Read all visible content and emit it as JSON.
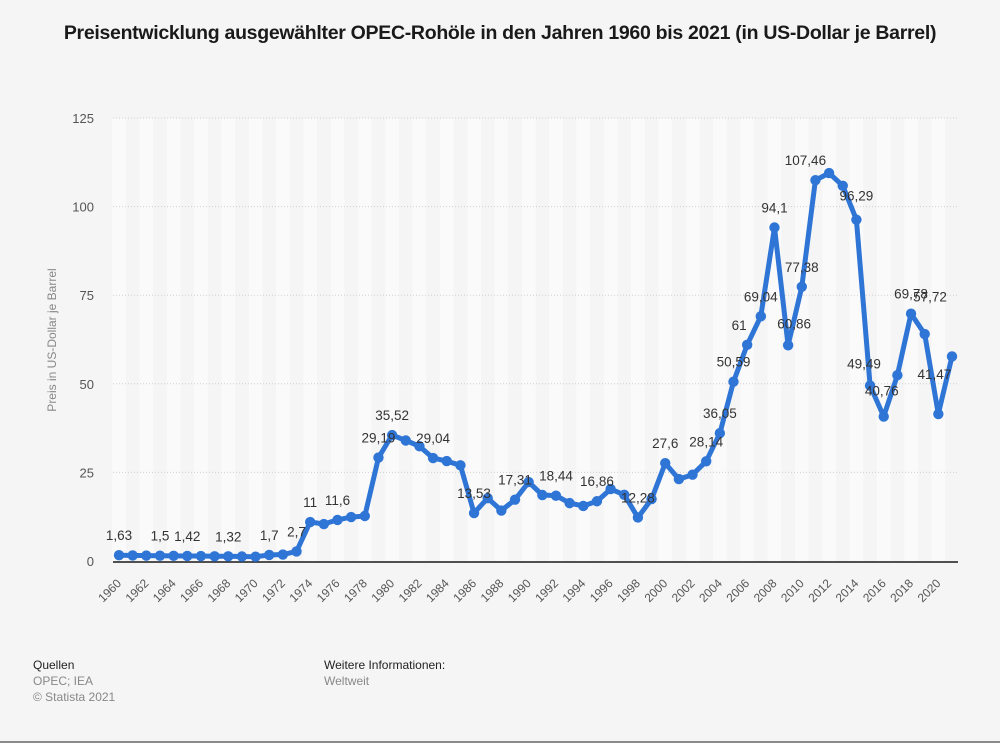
{
  "title": "Preisentwicklung ausgewählter OPEC-Rohöle in den Jahren 1960 bis 2021 (in US-Dollar je Barrel)",
  "footer": {
    "sources_heading": "Quellen",
    "sources": "OPEC; IEA",
    "copyright": "© Statista 2021",
    "more_info_heading": "Weitere Informationen:",
    "more_info": "Weltweit"
  },
  "colors": {
    "line": "#2f75d6",
    "background": "#f5f5f5",
    "grid": "#cfcfcf",
    "axis": "#1a1a1a"
  },
  "chart_data": {
    "type": "line",
    "title": "Preisentwicklung ausgewählter OPEC-Rohöle in den Jahren 1960 bis 2021 (in US-Dollar je Barrel)",
    "xlabel": "",
    "ylabel": "Preis in US-Dollar je Barrel",
    "ylim": [
      0,
      125
    ],
    "yticks": [
      0,
      25,
      50,
      75,
      100,
      125
    ],
    "grid": true,
    "legend": null,
    "x": [
      1960,
      1961,
      1962,
      1963,
      1964,
      1965,
      1966,
      1967,
      1968,
      1969,
      1970,
      1971,
      1972,
      1973,
      1974,
      1975,
      1976,
      1977,
      1978,
      1979,
      1980,
      1981,
      1982,
      1983,
      1984,
      1985,
      1986,
      1987,
      1988,
      1989,
      1990,
      1991,
      1992,
      1993,
      1994,
      1995,
      1996,
      1997,
      1998,
      1999,
      2000,
      2001,
      2002,
      2003,
      2004,
      2005,
      2006,
      2007,
      2008,
      2009,
      2010,
      2011,
      2012,
      2013,
      2014,
      2015,
      2016,
      2017,
      2018,
      2019,
      2020,
      2021
    ],
    "xticks": [
      1960,
      1962,
      1964,
      1966,
      1968,
      1970,
      1972,
      1974,
      1976,
      1978,
      1980,
      1982,
      1984,
      1986,
      1988,
      1990,
      1992,
      1994,
      1996,
      1998,
      2000,
      2002,
      2004,
      2006,
      2008,
      2010,
      2012,
      2014,
      2016,
      2018,
      2020
    ],
    "series": [
      {
        "name": "OPEC-Rohöl",
        "values": [
          1.63,
          1.57,
          1.52,
          1.5,
          1.45,
          1.42,
          1.4,
          1.33,
          1.32,
          1.27,
          1.21,
          1.7,
          1.82,
          2.7,
          11,
          10.43,
          11.6,
          12.4,
          12.7,
          29.19,
          35.52,
          34.0,
          32.38,
          29.04,
          28.2,
          27.01,
          13.53,
          17.73,
          14.24,
          17.31,
          22.26,
          18.62,
          18.44,
          16.33,
          15.53,
          16.86,
          20.29,
          18.68,
          12.28,
          17.47,
          27.6,
          23.12,
          24.36,
          28.14,
          36.05,
          50.59,
          61,
          69.04,
          94.1,
          60.86,
          77.38,
          107.46,
          109.45,
          105.87,
          96.29,
          49.49,
          40.76,
          52.43,
          69.78,
          64.04,
          41.47,
          57.72
        ]
      }
    ],
    "data_labels": [
      {
        "x": 1960,
        "text": "1,63"
      },
      {
        "x": 1963,
        "text": "1,5"
      },
      {
        "x": 1965,
        "text": "1,42"
      },
      {
        "x": 1968,
        "text": "1,32"
      },
      {
        "x": 1971,
        "text": "1,7"
      },
      {
        "x": 1973,
        "text": "2,7"
      },
      {
        "x": 1974,
        "text": "11"
      },
      {
        "x": 1976,
        "text": "11,6"
      },
      {
        "x": 1979,
        "text": "29,19"
      },
      {
        "x": 1980,
        "text": "35,52"
      },
      {
        "x": 1983,
        "text": "29,04"
      },
      {
        "x": 1986,
        "text": "13,53"
      },
      {
        "x": 1989,
        "text": "17,31"
      },
      {
        "x": 1992,
        "text": "18,44"
      },
      {
        "x": 1995,
        "text": "16,86"
      },
      {
        "x": 1998,
        "text": "12,28"
      },
      {
        "x": 2000,
        "text": "27,6"
      },
      {
        "x": 2003,
        "text": "28,14"
      },
      {
        "x": 2004,
        "text": "36,05"
      },
      {
        "x": 2005,
        "text": "50,59"
      },
      {
        "x": 2006,
        "text": "61"
      },
      {
        "x": 2007,
        "text": "69,04"
      },
      {
        "x": 2008,
        "text": "94,1"
      },
      {
        "x": 2009,
        "text": "60,86"
      },
      {
        "x": 2010,
        "text": "77,38"
      },
      {
        "x": 2011,
        "text": "107,46"
      },
      {
        "x": 2014,
        "text": "96,29"
      },
      {
        "x": 2015,
        "text": "49,49"
      },
      {
        "x": 2016,
        "text": "40,76"
      },
      {
        "x": 2018,
        "text": "69,78"
      },
      {
        "x": 2020,
        "text": "41,47"
      },
      {
        "x": 2021,
        "text": "57,72"
      }
    ]
  }
}
